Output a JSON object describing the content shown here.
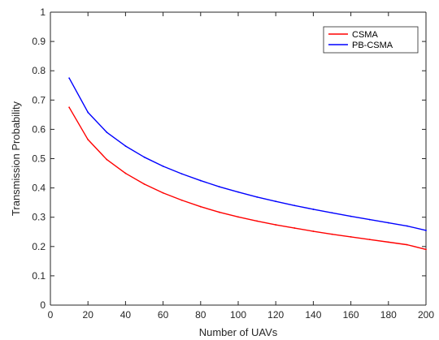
{
  "chart_data": {
    "type": "line",
    "title": "",
    "xlabel": "Number of UAVs",
    "ylabel": "Transmission Probability",
    "xlim": [
      0,
      200
    ],
    "ylim": [
      0,
      1
    ],
    "xticks": [
      0,
      20,
      40,
      60,
      80,
      100,
      120,
      140,
      160,
      180,
      200
    ],
    "yticks": [
      0,
      0.1,
      0.2,
      0.3,
      0.4,
      0.5,
      0.6,
      0.7,
      0.8,
      0.9,
      1
    ],
    "grid": false,
    "box": true,
    "legend_position": "top-right",
    "x": [
      10,
      20,
      30,
      40,
      50,
      60,
      70,
      80,
      90,
      100,
      110,
      120,
      130,
      140,
      150,
      160,
      170,
      180,
      190,
      200
    ],
    "series": [
      {
        "name": "CSMA",
        "color": "#ff0000",
        "values": [
          0.675,
          0.565,
          0.497,
          0.45,
          0.413,
          0.383,
          0.358,
          0.336,
          0.317,
          0.301,
          0.287,
          0.274,
          0.263,
          0.252,
          0.242,
          0.233,
          0.224,
          0.215,
          0.206,
          0.19
        ]
      },
      {
        "name": "PB-CSMA",
        "color": "#0000ff",
        "values": [
          0.775,
          0.658,
          0.59,
          0.543,
          0.505,
          0.474,
          0.448,
          0.425,
          0.404,
          0.386,
          0.369,
          0.354,
          0.34,
          0.327,
          0.315,
          0.303,
          0.292,
          0.281,
          0.27,
          0.255
        ]
      }
    ]
  }
}
